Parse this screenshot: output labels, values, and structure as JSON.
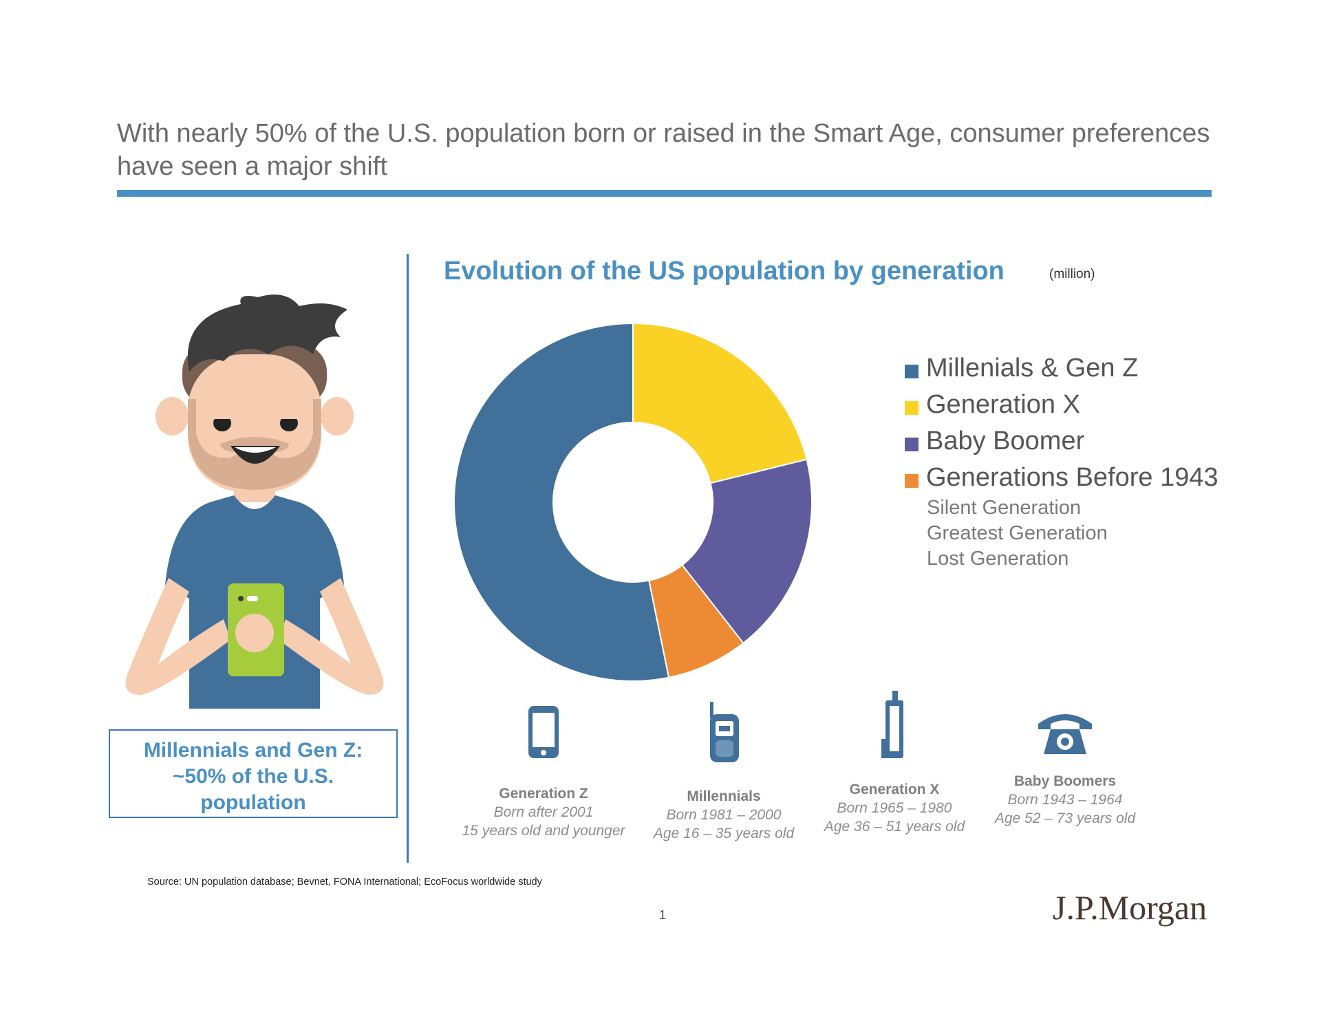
{
  "headline": "With nearly 50% of the U.S. population born or raised in the Smart Age, consumer preferences have seen a major shift",
  "callout": {
    "lines": [
      "Millennials and Gen Z:",
      "~50% of the U.S.",
      "population"
    ]
  },
  "chart_data": {
    "type": "pie",
    "title": "Evolution of the US population by generation",
    "unit": "(million)",
    "donut": true,
    "categories": [
      "Millenials & Gen Z",
      "Generation X",
      "Baby Boomer",
      "Generations Before 1943"
    ],
    "values": [
      166,
      66,
      57,
      23
    ],
    "colors": [
      "#41709a",
      "#fad125",
      "#5f5b9c",
      "#ed8b34"
    ],
    "legend_position": "right",
    "legend_subitems": [
      "Silent Generation",
      "Greatest Generation",
      "Lost Generation"
    ]
  },
  "generations": [
    {
      "name": "Generation Z",
      "born": "Born after 2001",
      "age": "15 years old and younger",
      "icon": "smartphone-icon"
    },
    {
      "name": "Millennials",
      "born": "Born 1981 – 2000",
      "age": "Age 16 – 35 years old",
      "icon": "flip-phone-icon"
    },
    {
      "name": "Generation X",
      "born": "Born 1965 – 1980",
      "age": "Age 36 – 51 years old",
      "icon": "brick-phone-icon"
    },
    {
      "name": "Baby Boomers",
      "born": "Born 1943 – 1964",
      "age": "Age 52 – 73 years old",
      "icon": "rotary-phone-icon"
    }
  ],
  "colors": {
    "accent": "#4a90c4",
    "icon": "#41709a"
  },
  "source": "Source: UN population database; Bevnet, FONA International; EcoFocus worldwide study",
  "page_number": "1",
  "logo": "J.P.Morgan"
}
